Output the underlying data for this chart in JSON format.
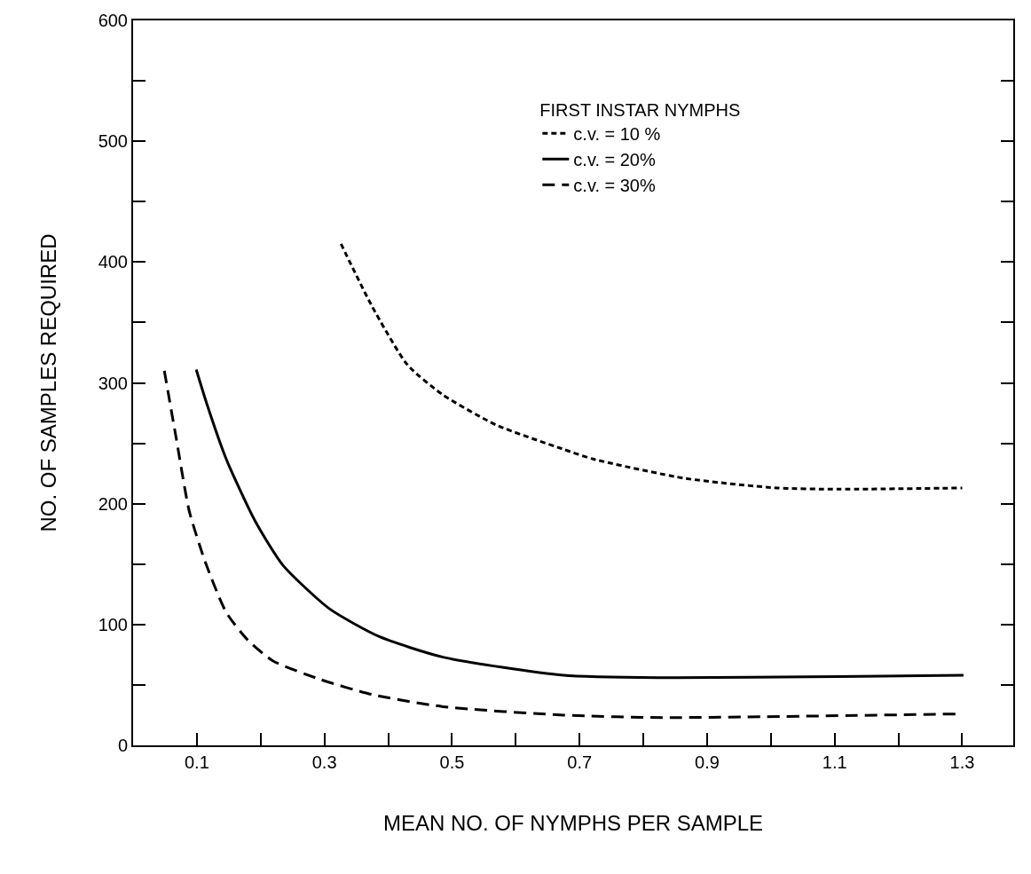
{
  "chart_data": {
    "type": "line",
    "xlabel": "MEAN NO. OF NYMPHS PER SAMPLE",
    "ylabel": "NO. OF SAMPLES REQUIRED",
    "legend_title": "FIRST INSTAR NYMPHS",
    "legend": "top",
    "grid": false,
    "marker": "none",
    "xlim": [
      0,
      1.38
    ],
    "ylim": [
      0,
      600
    ],
    "xticks": [
      {
        "value": 0.1,
        "label": "0.1"
      },
      {
        "value": 0.2,
        "label": null
      },
      {
        "value": 0.3,
        "label": "0.3"
      },
      {
        "value": 0.4,
        "label": null
      },
      {
        "value": 0.5,
        "label": "0.5"
      },
      {
        "value": 0.6,
        "label": null
      },
      {
        "value": 0.7,
        "label": "0.7"
      },
      {
        "value": 0.8,
        "label": null
      },
      {
        "value": 0.9,
        "label": "0.9"
      },
      {
        "value": 1.0,
        "label": null
      },
      {
        "value": 1.1,
        "label": "1.1"
      },
      {
        "value": 1.2,
        "label": null
      },
      {
        "value": 1.3,
        "label": "1.3"
      }
    ],
    "yticks": [
      0,
      {
        "value": 50,
        "label": null
      },
      100,
      {
        "value": 150,
        "label": null
      },
      200,
      {
        "value": 250,
        "label": null
      },
      300,
      {
        "value": 350,
        "label": null
      },
      400,
      {
        "value": 450,
        "label": null
      },
      500,
      {
        "value": 550,
        "label": null
      },
      600
    ],
    "series": [
      {
        "name": "c.v. = 10 %",
        "color": "#000000",
        "line_style": "dotted",
        "x": [
          0.326,
          0.375,
          0.43,
          0.486,
          0.57,
          0.675,
          0.721,
          0.865,
          1.01,
          1.106,
          1.3
        ],
        "values": [
          415,
          363,
          315,
          290,
          265,
          245,
          237,
          221,
          213,
          212,
          213
        ]
      },
      {
        "name": "c.v. = 20%",
        "color": "#000000",
        "line_style": "solid",
        "x": [
          0.099,
          0.116,
          0.146,
          0.191,
          0.235,
          0.308,
          0.386,
          0.486,
          0.675,
          0.827,
          1.106,
          1.302
        ],
        "values": [
          311,
          282,
          237,
          186,
          149,
          113,
          90,
          73,
          58,
          56,
          57,
          58
        ]
      },
      {
        "name": "c.v. = 30%",
        "color": "#000000",
        "line_style": "dashed",
        "x": [
          0.049,
          0.068,
          0.088,
          0.113,
          0.146,
          0.18,
          0.219,
          0.291,
          0.375,
          0.486,
          0.675,
          0.831,
          1.293
        ],
        "values": [
          310,
          253,
          194,
          152,
          110,
          87,
          70,
          55,
          42,
          32,
          25,
          23,
          26
        ]
      }
    ]
  }
}
